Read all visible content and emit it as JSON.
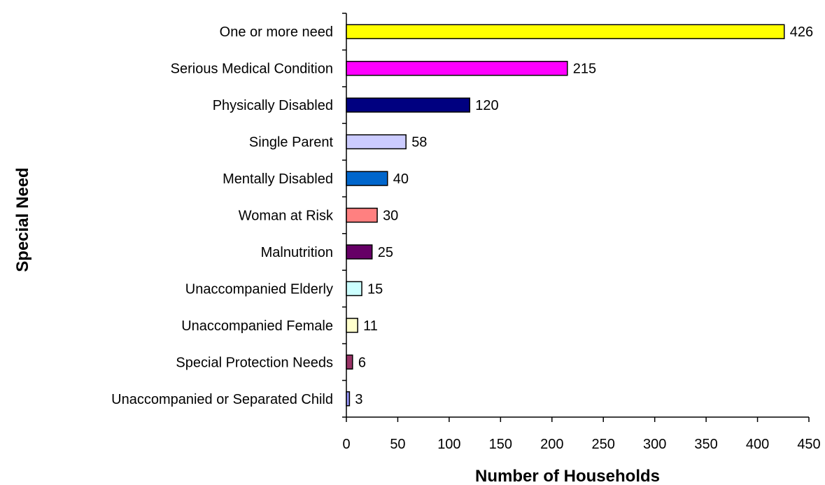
{
  "chart_data": {
    "type": "bar",
    "orientation": "horizontal",
    "title": "",
    "xlabel": "Number of Households",
    "ylabel": "Special Need",
    "xlim": [
      0,
      450
    ],
    "xticks": [
      0,
      50,
      100,
      150,
      200,
      250,
      300,
      350,
      400,
      450
    ],
    "grid": false,
    "legend": "none",
    "categories": [
      "One or more need",
      "Serious Medical Condition",
      "Physically Disabled",
      "Single Parent",
      "Mentally Disabled",
      "Woman at Risk",
      "Malnutrition",
      "Unaccompanied Elderly",
      "Unaccompanied Female",
      "Special Protection Needs",
      "Unaccompanied or Separated Child"
    ],
    "values": [
      426,
      215,
      120,
      58,
      40,
      30,
      25,
      15,
      11,
      6,
      3
    ],
    "colors": [
      "#ffff00",
      "#ff00ff",
      "#000080",
      "#ccccff",
      "#0066cc",
      "#ff8080",
      "#660066",
      "#ccffff",
      "#ffffcc",
      "#993366",
      "#9999ff"
    ]
  }
}
